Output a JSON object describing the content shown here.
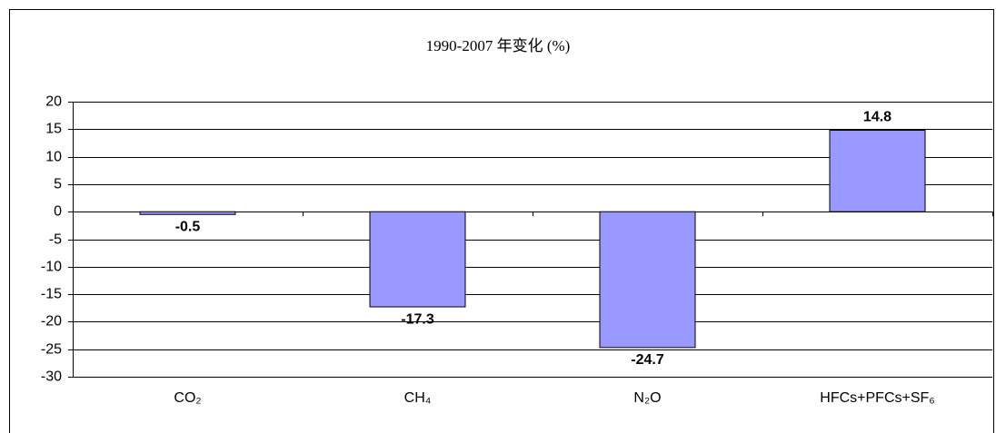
{
  "chart_data": {
    "type": "bar",
    "title": "1990-2007 年变化 (%)",
    "categories": [
      "CO₂",
      "CH₄",
      "N₂O",
      "HFCs+PFCs+SF₆"
    ],
    "values": [
      -0.5,
      -17.3,
      -24.7,
      14.8
    ],
    "color": "#9999ff",
    "ylim": [
      -30,
      20
    ],
    "yticks": [
      -30,
      -25,
      -20,
      -15,
      -10,
      -5,
      0,
      5,
      10,
      15,
      20
    ],
    "grid": true
  }
}
